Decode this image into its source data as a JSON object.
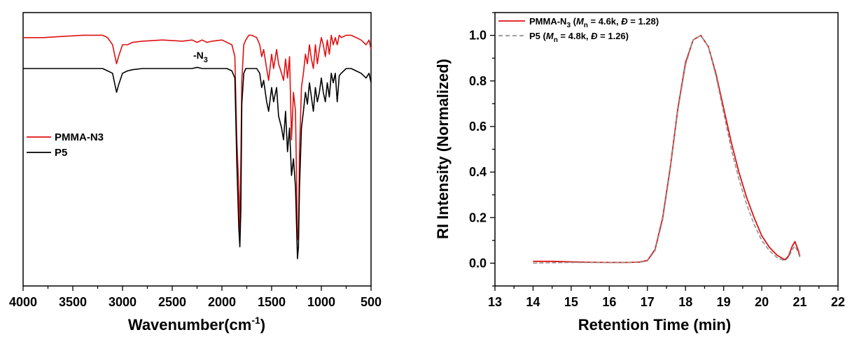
{
  "chart_data": [
    {
      "type": "line",
      "xlabel": "Wavenumber(cm",
      "xlabel_sup": "-1",
      "xlabel_end": ")",
      "ylabel": "",
      "xlim": [
        4000,
        500
      ],
      "x_inverted": true,
      "xticks": [
        "4000",
        "3500",
        "3000",
        "2500",
        "2000",
        "1500",
        "1000",
        "500"
      ],
      "grid": false,
      "legend_position": "middle-left",
      "annotation": {
        "base": "-N",
        "sub": "3",
        "x": 2200
      },
      "series": [
        {
          "name": "PMMA-N3",
          "color": "#e01010",
          "x": [
            4000,
            3800,
            3600,
            3400,
            3300,
            3200,
            3150,
            3100,
            3080,
            3060,
            3040,
            3000,
            2950,
            2900,
            2800,
            2600,
            2400,
            2300,
            2250,
            2200,
            2150,
            2100,
            2000,
            1950,
            1900,
            1870,
            1850,
            1830,
            1820,
            1810,
            1800,
            1780,
            1760,
            1730,
            1700,
            1650,
            1620,
            1600,
            1580,
            1550,
            1530,
            1500,
            1480,
            1450,
            1430,
            1400,
            1380,
            1360,
            1340,
            1320,
            1300,
            1280,
            1260,
            1250,
            1240,
            1230,
            1220,
            1200,
            1180,
            1160,
            1140,
            1120,
            1100,
            1080,
            1060,
            1040,
            1020,
            1000,
            980,
            960,
            940,
            920,
            900,
            880,
            860,
            840,
            820,
            800,
            750,
            700,
            650,
            600,
            550,
            520,
            500
          ],
          "y": [
            0.93,
            0.93,
            0.935,
            0.94,
            0.94,
            0.94,
            0.93,
            0.9,
            0.86,
            0.82,
            0.85,
            0.9,
            0.9,
            0.91,
            0.915,
            0.92,
            0.915,
            0.92,
            0.91,
            0.92,
            0.91,
            0.915,
            0.92,
            0.91,
            0.9,
            0.85,
            0.5,
            0.3,
            0.1,
            0.4,
            0.75,
            0.9,
            0.92,
            0.94,
            0.94,
            0.93,
            0.9,
            0.85,
            0.88,
            0.8,
            0.75,
            0.86,
            0.8,
            0.88,
            0.82,
            0.78,
            0.75,
            0.84,
            0.76,
            0.85,
            0.5,
            0.7,
            0.62,
            0.35,
            0.08,
            0.1,
            0.45,
            0.72,
            0.78,
            0.86,
            0.82,
            0.9,
            0.84,
            0.8,
            0.9,
            0.82,
            0.88,
            0.93,
            0.9,
            0.85,
            0.92,
            0.86,
            0.94,
            0.9,
            0.93,
            0.9,
            0.94,
            0.93,
            0.94,
            0.94,
            0.93,
            0.92,
            0.9,
            0.92,
            0.88
          ]
        },
        {
          "name": "P5",
          "color": "#000000",
          "x": [
            4000,
            3800,
            3600,
            3400,
            3300,
            3200,
            3150,
            3100,
            3080,
            3060,
            3040,
            3000,
            2950,
            2900,
            2800,
            2600,
            2400,
            2300,
            2250,
            2200,
            2150,
            2100,
            2000,
            1950,
            1900,
            1870,
            1850,
            1830,
            1820,
            1810,
            1800,
            1780,
            1760,
            1730,
            1700,
            1650,
            1620,
            1600,
            1580,
            1550,
            1530,
            1500,
            1480,
            1450,
            1430,
            1400,
            1380,
            1360,
            1340,
            1320,
            1300,
            1280,
            1260,
            1250,
            1240,
            1230,
            1220,
            1200,
            1180,
            1160,
            1140,
            1120,
            1100,
            1080,
            1060,
            1040,
            1020,
            1000,
            980,
            960,
            940,
            920,
            900,
            880,
            860,
            840,
            820,
            800,
            750,
            700,
            650,
            600,
            550,
            520,
            500
          ],
          "y": [
            0.8,
            0.8,
            0.8,
            0.8,
            0.8,
            0.8,
            0.79,
            0.78,
            0.74,
            0.7,
            0.73,
            0.78,
            0.79,
            0.795,
            0.8,
            0.8,
            0.8,
            0.8,
            0.805,
            0.8,
            0.8,
            0.8,
            0.8,
            0.8,
            0.79,
            0.76,
            0.4,
            0.13,
            0.05,
            0.2,
            0.65,
            0.78,
            0.8,
            0.8,
            0.8,
            0.8,
            0.78,
            0.72,
            0.75,
            0.66,
            0.62,
            0.72,
            0.66,
            0.72,
            0.6,
            0.55,
            0.5,
            0.62,
            0.45,
            0.55,
            0.35,
            0.42,
            0.3,
            0.15,
            0.0,
            0.05,
            0.3,
            0.55,
            0.62,
            0.7,
            0.65,
            0.74,
            0.68,
            0.62,
            0.72,
            0.66,
            0.7,
            0.76,
            0.7,
            0.66,
            0.74,
            0.68,
            0.78,
            0.74,
            0.78,
            0.66,
            0.77,
            0.78,
            0.8,
            0.8,
            0.79,
            0.78,
            0.76,
            0.78,
            0.74
          ]
        }
      ]
    },
    {
      "type": "line",
      "xlabel": "Retention Time (min)",
      "ylabel": "RI Intensity (Normalized)",
      "xlim": [
        13,
        22
      ],
      "ylim": [
        -0.1,
        1.1
      ],
      "xticks": [
        13,
        14,
        15,
        16,
        17,
        18,
        19,
        20,
        21,
        22
      ],
      "yticks": [
        "0.0",
        "0.2",
        "0.4",
        "0.6",
        "0.8",
        "1.0"
      ],
      "grid": false,
      "legend_position": "top-left",
      "series": [
        {
          "name": "PMMA-N3 (Mn = 4.6k, Đ = 1.28)",
          "legend": {
            "a": "PMMA-N",
            "a_sub": "3",
            "b": " (",
            "m": "M",
            "m_sub": "n",
            "c": " = 4.6k, ",
            "d": "Đ",
            "e": " = 1.28)"
          },
          "color": "#e01010",
          "dashed": false,
          "x": [
            14.0,
            14.5,
            15.0,
            15.5,
            16.0,
            16.5,
            16.8,
            17.0,
            17.2,
            17.4,
            17.6,
            17.8,
            18.0,
            18.2,
            18.4,
            18.6,
            18.8,
            19.0,
            19.2,
            19.4,
            19.6,
            19.8,
            20.0,
            20.2,
            20.4,
            20.6,
            20.7,
            20.8,
            20.87,
            20.95,
            21.0
          ],
          "y": [
            0.008,
            0.008,
            0.006,
            0.004,
            0.003,
            0.003,
            0.005,
            0.012,
            0.06,
            0.2,
            0.42,
            0.68,
            0.88,
            0.98,
            1.0,
            0.95,
            0.83,
            0.68,
            0.53,
            0.4,
            0.29,
            0.2,
            0.12,
            0.07,
            0.035,
            0.015,
            0.03,
            0.075,
            0.095,
            0.06,
            0.03
          ]
        },
        {
          "name": "P5 (Mn = 4.8k, Đ = 1.26)",
          "legend": {
            "a": "P5",
            "a_sub": "",
            "b": " (",
            "m": "M",
            "m_sub": "n",
            "c": " = 4.8k, ",
            "d": "Đ",
            "e": " = 1.26)"
          },
          "color": "#909090",
          "dashed": true,
          "x": [
            14.0,
            14.5,
            15.0,
            15.5,
            16.0,
            16.5,
            16.8,
            17.0,
            17.2,
            17.4,
            17.6,
            17.8,
            18.0,
            18.2,
            18.4,
            18.6,
            18.8,
            19.0,
            19.2,
            19.4,
            19.6,
            19.8,
            20.0,
            20.2,
            20.4,
            20.6,
            20.7,
            20.8,
            20.87,
            20.95,
            21.0
          ],
          "y": [
            0.0,
            0.002,
            0.003,
            0.003,
            0.003,
            0.003,
            0.004,
            0.01,
            0.055,
            0.19,
            0.41,
            0.67,
            0.87,
            0.98,
            1.0,
            0.95,
            0.82,
            0.66,
            0.5,
            0.37,
            0.26,
            0.17,
            0.1,
            0.055,
            0.025,
            0.01,
            0.025,
            0.06,
            0.075,
            0.05,
            0.025
          ]
        }
      ]
    }
  ]
}
